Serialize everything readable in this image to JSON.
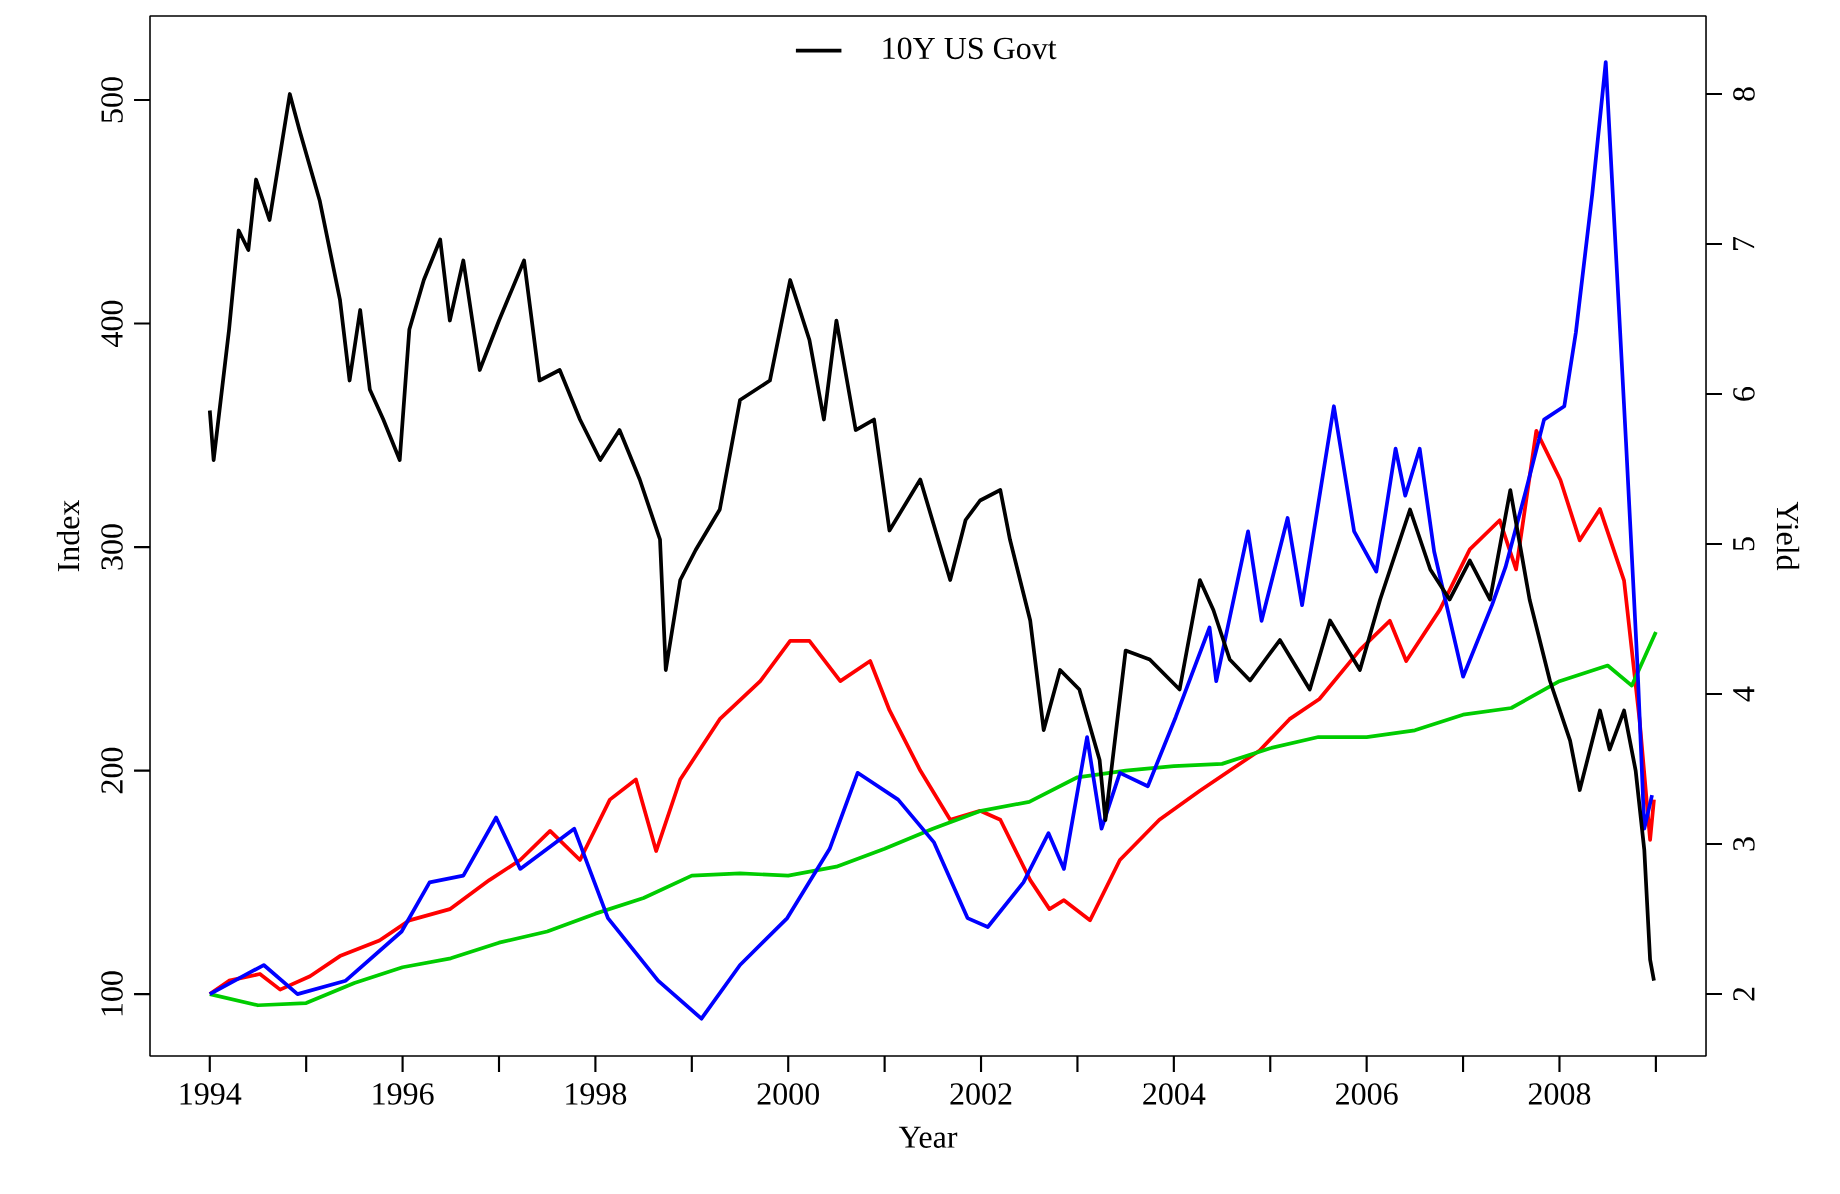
{
  "chart_data": {
    "type": "line",
    "xlabel": "Year",
    "ylabel": "Index",
    "y2label": "Yield",
    "legend": "top",
    "xlim": [
      1993.38,
      2009.52
    ],
    "ylim": [
      72.3,
      537.6
    ],
    "y2lim": [
      1.587,
      8.52
    ],
    "xticks": [
      1994,
      {
        "value": 1995,
        "label": null
      },
      1996,
      {
        "value": 1997,
        "label": null
      },
      1998,
      {
        "value": 1999,
        "label": null
      },
      2000,
      {
        "value": 2001,
        "label": null
      },
      2002,
      {
        "value": 2003,
        "label": null
      },
      2004,
      {
        "value": 2005,
        "label": null
      },
      2006,
      {
        "value": 2007,
        "label": null
      },
      2008,
      {
        "value": 2009,
        "label": null
      }
    ],
    "yticks": [
      100,
      200,
      300,
      400,
      500
    ],
    "y2ticks": [
      2,
      3,
      4,
      5,
      6,
      7,
      8
    ],
    "series": [
      {
        "name": "10Y US Govt",
        "color": "#000000",
        "axis": "y2",
        "x": [
          1994.0,
          1994.04,
          1994.2,
          1994.3,
          1994.4,
          1994.48,
          1994.62,
          1994.83,
          1994.93,
          1995.14,
          1995.35,
          1995.45,
          1995.56,
          1995.66,
          1995.8,
          1995.97,
          1996.07,
          1996.22,
          1996.39,
          1996.49,
          1996.63,
          1996.8,
          1997.0,
          1997.26,
          1997.42,
          1997.63,
          1997.84,
          1998.05,
          1998.25,
          1998.46,
          1998.67,
          1998.73,
          1998.88,
          1999.04,
          1999.29,
          1999.5,
          1999.81,
          2000.02,
          2000.22,
          2000.37,
          2000.5,
          2000.7,
          2000.89,
          2001.05,
          2001.37,
          2001.68,
          2001.84,
          2001.99,
          2002.2,
          2002.3,
          2002.51,
          2002.65,
          2002.82,
          2003.02,
          2003.23,
          2003.29,
          2003.5,
          2003.75,
          2004.06,
          2004.27,
          2004.41,
          2004.58,
          2004.79,
          2005.1,
          2005.41,
          2005.62,
          2005.93,
          2006.14,
          2006.45,
          2006.66,
          2006.86,
          2007.07,
          2007.28,
          2007.49,
          2007.69,
          2007.9,
          2008.11,
          2008.21,
          2008.42,
          2008.52,
          2008.67,
          2008.79,
          2008.88,
          2008.94,
          2008.98
        ],
        "values": [
          5.89,
          5.56,
          6.43,
          7.09,
          6.96,
          7.43,
          7.16,
          8.0,
          7.76,
          7.29,
          6.63,
          6.09,
          6.56,
          6.03,
          5.83,
          5.56,
          6.43,
          6.76,
          7.03,
          6.49,
          6.89,
          6.16,
          6.49,
          6.89,
          6.09,
          6.16,
          5.83,
          5.56,
          5.76,
          5.43,
          5.03,
          4.16,
          4.76,
          4.96,
          5.23,
          5.96,
          6.09,
          6.76,
          6.36,
          5.83,
          6.49,
          5.76,
          5.83,
          5.09,
          5.43,
          4.76,
          5.16,
          5.29,
          5.36,
          5.03,
          4.49,
          3.76,
          4.16,
          4.03,
          3.56,
          3.16,
          4.29,
          4.23,
          4.03,
          4.76,
          4.56,
          4.23,
          4.09,
          4.36,
          4.03,
          4.49,
          4.16,
          4.63,
          5.23,
          4.83,
          4.63,
          4.89,
          4.63,
          5.36,
          4.63,
          4.09,
          3.69,
          3.36,
          3.89,
          3.63,
          3.89,
          3.49,
          2.96,
          2.23,
          2.09
        ]
      },
      {
        "color": "#ff0000",
        "x": [
          1994.0,
          1994.2,
          1994.52,
          1994.73,
          1995.04,
          1995.35,
          1995.76,
          1996.07,
          1996.49,
          1996.9,
          1997.22,
          1997.53,
          1997.84,
          1998.15,
          1998.42,
          1998.63,
          1998.88,
          1999.29,
          1999.71,
          2000.02,
          2000.22,
          2000.54,
          2000.85,
          2001.05,
          2001.37,
          2001.68,
          2001.99,
          2002.2,
          2002.51,
          2002.71,
          2002.86,
          2003.13,
          2003.44,
          2003.85,
          2004.27,
          2004.58,
          2004.89,
          2005.2,
          2005.51,
          2005.93,
          2006.24,
          2006.41,
          2006.76,
          2007.07,
          2007.38,
          2007.55,
          2007.76,
          2008.01,
          2008.21,
          2008.42,
          2008.67,
          2008.83,
          2008.94,
          2008.98
        ],
        "values": [
          100,
          106,
          109,
          102,
          108,
          117,
          124,
          133,
          138,
          151,
          160,
          173,
          160,
          187,
          196,
          164,
          196,
          223,
          240,
          258,
          258,
          240,
          249,
          227,
          200,
          178,
          182,
          178,
          151,
          138,
          142,
          133,
          160,
          178,
          191,
          200,
          209,
          223,
          232,
          254,
          267,
          249,
          272,
          299,
          312,
          290,
          352,
          330,
          303,
          317,
          285,
          223,
          169,
          187
        ]
      },
      {
        "color": "#00cc00",
        "x": [
          1994.0,
          1994.5,
          1995.0,
          1995.5,
          1996.0,
          1996.5,
          1997.0,
          1997.5,
          1998.0,
          1998.5,
          1999.0,
          1999.5,
          2000.0,
          2000.5,
          2001.0,
          2001.5,
          2002.0,
          2002.5,
          2003.0,
          2003.5,
          2004.0,
          2004.5,
          2005.0,
          2005.5,
          2006.0,
          2006.5,
          2007.0,
          2007.5,
          2008.0,
          2008.5,
          2008.75,
          2009.0
        ],
        "values": [
          100,
          95,
          96,
          105,
          112,
          116,
          123,
          128,
          136,
          143,
          153,
          154,
          153,
          157,
          165,
          174,
          182,
          186,
          197,
          200,
          202,
          203,
          210,
          215,
          215,
          218,
          225,
          228,
          240,
          247,
          238,
          262
        ]
      },
      {
        "color": "#0000ff",
        "x": [
          1994.0,
          1994.56,
          1994.91,
          1995.41,
          1995.99,
          1996.28,
          1996.63,
          1996.97,
          1997.22,
          1997.78,
          1998.13,
          1998.65,
          1999.1,
          1999.5,
          1999.99,
          2000.43,
          2000.72,
          2001.14,
          2001.51,
          2001.86,
          2002.07,
          2002.44,
          2002.7,
          2002.86,
          2003.1,
          2003.25,
          2003.44,
          2003.73,
          2004.02,
          2004.37,
          2004.44,
          2004.77,
          2004.91,
          2005.18,
          2005.33,
          2005.66,
          2005.87,
          2006.1,
          2006.3,
          2006.4,
          2006.55,
          2006.7,
          2007.0,
          2007.3,
          2007.44,
          2007.65,
          2007.84,
          2008.05,
          2008.17,
          2008.34,
          2008.48,
          2008.59,
          2008.69,
          2008.81,
          2008.88,
          2008.96
        ],
        "values": [
          100,
          113,
          100,
          106,
          128,
          150,
          153,
          179,
          156,
          174,
          134,
          106,
          89,
          113,
          134,
          165,
          199,
          187,
          168,
          134,
          130,
          150,
          172,
          156,
          215,
          174,
          199,
          193,
          224,
          264,
          240,
          307,
          267,
          313,
          274,
          363,
          307,
          289,
          344,
          323,
          344,
          298,
          242,
          274,
          291,
          325,
          357,
          363,
          396,
          458,
          517,
          428,
          347,
          246,
          174,
          189
        ]
      }
    ]
  }
}
